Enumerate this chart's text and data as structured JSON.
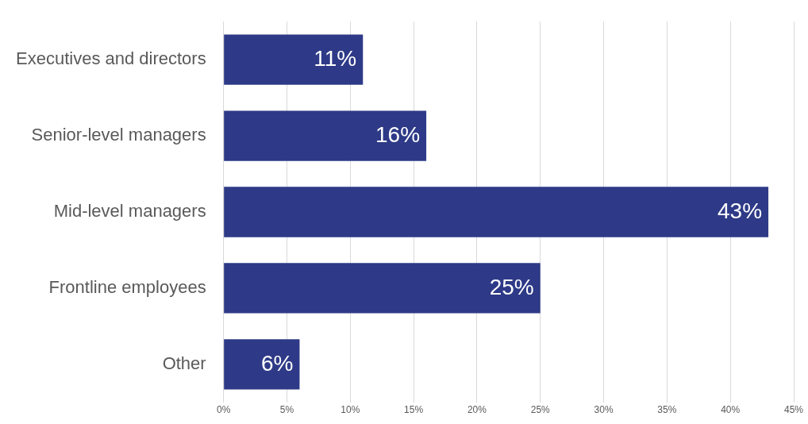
{
  "chart_data": {
    "type": "bar",
    "orientation": "horizontal",
    "categories": [
      "Executives and directors",
      "Senior-level managers",
      "Mid-level managers",
      "Frontline employees",
      "Other"
    ],
    "values": [
      11,
      16,
      43,
      25,
      6
    ],
    "value_labels": [
      "11%",
      "16%",
      "43%",
      "25%",
      "6%"
    ],
    "color": "#2e3a87",
    "xlim": [
      0,
      45
    ],
    "xticks": [
      {
        "value": 0,
        "label": "0%"
      },
      {
        "value": 5,
        "label": "5%"
      },
      {
        "value": 10,
        "label": "10%"
      },
      {
        "value": 15,
        "label": "15%"
      },
      {
        "value": 20,
        "label": "20%"
      },
      {
        "value": 25,
        "label": "25%"
      },
      {
        "value": 30,
        "label": "30%"
      },
      {
        "value": 35,
        "label": "35%"
      },
      {
        "value": 40,
        "label": "40%"
      },
      {
        "value": 45,
        "label": "45%"
      }
    ],
    "grid": "x",
    "legend": false
  }
}
